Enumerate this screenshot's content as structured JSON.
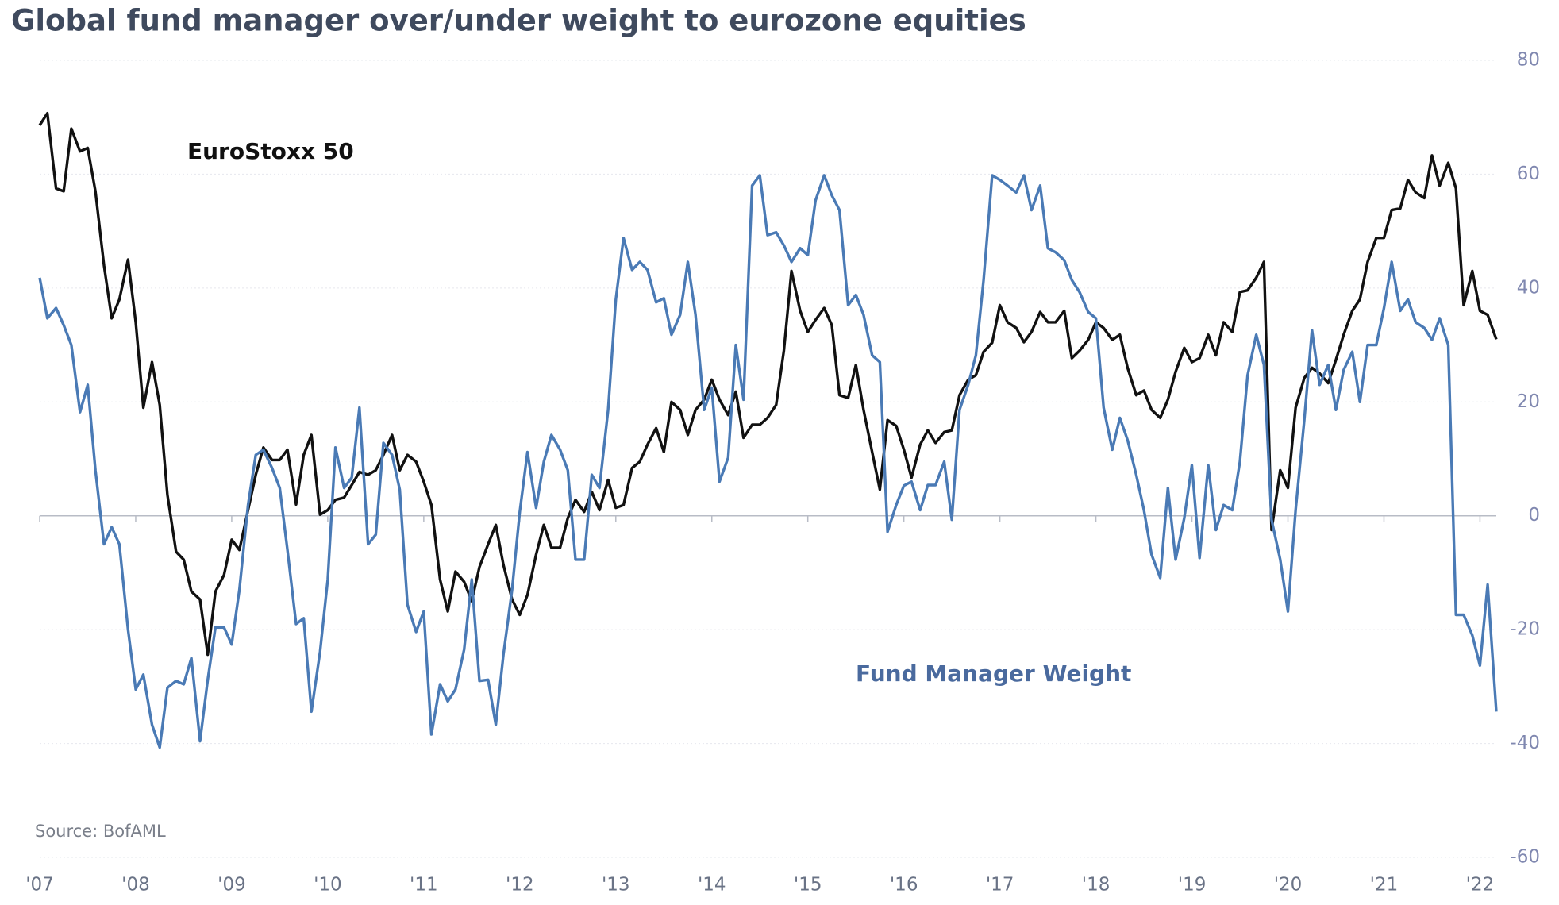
{
  "chart_data": {
    "type": "line",
    "title": "Global fund manager over/under weight to eurozone equities",
    "source": "Source: BofAML",
    "x": [
      2007.0,
      2007.08,
      2007.17,
      2007.25,
      2007.33,
      2007.42,
      2007.5,
      2007.58,
      2007.67,
      2007.75,
      2007.83,
      2007.92,
      2008.0,
      2008.08,
      2008.17,
      2008.25,
      2008.33,
      2008.42,
      2008.5,
      2008.58,
      2008.67,
      2008.75,
      2008.83,
      2008.92,
      2009.0,
      2009.08,
      2009.17,
      2009.25,
      2009.33,
      2009.42,
      2009.5,
      2009.58,
      2009.67,
      2009.75,
      2009.83,
      2009.92,
      2010.0,
      2010.08,
      2010.17,
      2010.25,
      2010.33,
      2010.42,
      2010.5,
      2010.58,
      2010.67,
      2010.75,
      2010.83,
      2010.92,
      2011.0,
      2011.08,
      2011.17,
      2011.25,
      2011.33,
      2011.42,
      2011.5,
      2011.58,
      2011.67,
      2011.75,
      2011.83,
      2011.92,
      2012.0,
      2012.08,
      2012.17,
      2012.25,
      2012.33,
      2012.42,
      2012.5,
      2012.58,
      2012.67,
      2012.75,
      2012.83,
      2012.92,
      2013.0,
      2013.08,
      2013.17,
      2013.25,
      2013.33,
      2013.42,
      2013.5,
      2013.58,
      2013.67,
      2013.75,
      2013.83,
      2013.92,
      2014.0,
      2014.08,
      2014.17,
      2014.25,
      2014.33,
      2014.42,
      2014.5,
      2014.58,
      2014.67,
      2014.75,
      2014.83,
      2014.92,
      2015.0,
      2015.08,
      2015.17,
      2015.25,
      2015.33,
      2015.42,
      2015.5,
      2015.58,
      2015.67,
      2015.75,
      2015.83,
      2015.92,
      2016.0,
      2016.08,
      2016.17,
      2016.25,
      2016.33,
      2016.42,
      2016.5,
      2016.58,
      2016.67,
      2016.75,
      2016.83,
      2016.92,
      2017.0,
      2017.08,
      2017.17,
      2017.25,
      2017.33,
      2017.42,
      2017.5,
      2017.58,
      2017.67,
      2017.75,
      2017.83,
      2017.92,
      2018.0,
      2018.08,
      2018.17,
      2018.25,
      2018.33,
      2018.42,
      2018.5,
      2018.58,
      2018.67,
      2018.75,
      2018.83,
      2018.92,
      2019.0,
      2019.08,
      2019.17,
      2019.25,
      2019.33,
      2019.42,
      2019.5,
      2019.58,
      2019.67,
      2019.75,
      2019.83,
      2019.92,
      2020.0,
      2020.08,
      2020.17,
      2020.25,
      2020.33,
      2020.42,
      2020.5,
      2020.58,
      2020.67,
      2020.75,
      2020.83,
      2020.92,
      2021.0,
      2021.08,
      2021.17,
      2021.25,
      2021.33,
      2021.42,
      2021.5,
      2021.58,
      2021.67,
      2021.75,
      2021.83,
      2021.92,
      2022.0,
      2022.08,
      2022.17
    ],
    "series": [
      {
        "name": "EuroStoxx 50",
        "color": "#111111",
        "values": [
          68.6,
          70.7,
          57.5,
          57,
          68,
          64,
          64.6,
          57,
          44,
          34.7,
          38,
          45,
          34,
          19,
          27,
          19.5,
          3.7,
          -6.3,
          -7.7,
          -13.3,
          -14.7,
          -24.4,
          -13.3,
          -10.4,
          -4.2,
          -6,
          1,
          7.2,
          12,
          9.8,
          9.8,
          11.6,
          2,
          10.7,
          14.2,
          0.2,
          1,
          2.8,
          3.2,
          5.4,
          7.7,
          7.2,
          8,
          10.7,
          14.2,
          8,
          10.7,
          9.5,
          6,
          1.9,
          -11.2,
          -16.8,
          -9.8,
          -11.6,
          -15,
          -9,
          -5,
          -1.6,
          -8.6,
          -14.7,
          -17.4,
          -13.9,
          -6.8,
          -1.6,
          -5.6,
          -5.6,
          -0.4,
          2.8,
          0.7,
          4.2,
          1,
          6.3,
          1.4,
          1.9,
          8.4,
          9.5,
          12.5,
          15.4,
          11.2,
          20,
          18.6,
          14.2,
          18.6,
          20.4,
          23.9,
          20.4,
          17.7,
          21.8,
          13.7,
          16,
          16,
          17.2,
          19.5,
          29,
          43,
          36,
          32.3,
          34.4,
          36.5,
          33.5,
          21.2,
          20.7,
          26.5,
          18.6,
          11.2,
          4.6,
          16.8,
          15.8,
          11.6,
          6.7,
          12.5,
          15,
          12.8,
          14.7,
          15,
          21.2,
          23.9,
          24.7,
          28.8,
          30.4,
          37,
          34,
          33,
          30.5,
          32.3,
          35.8,
          34,
          34,
          36,
          27.7,
          29,
          30.9,
          34,
          33,
          30.9,
          31.8,
          26,
          21.2,
          22,
          18.6,
          17.2,
          20.4,
          25.3,
          29.5,
          27,
          27.7,
          31.8,
          28.2,
          34,
          32.3,
          39.3,
          39.6,
          41.8,
          44.6,
          -2.5,
          8,
          4.9,
          19,
          24.2,
          26,
          25,
          23.3,
          27.4,
          31.8,
          36,
          38,
          44.6,
          48.8,
          48.8,
          53.7,
          54,
          59,
          56.8,
          55.8,
          63.3,
          58,
          62,
          57.5,
          37,
          43,
          36,
          35.3,
          31
        ]
      },
      {
        "name": "Fund Manager Weight",
        "color": "#4a7ab5",
        "values": [
          41.8,
          34.7,
          36.5,
          33.5,
          30,
          18.2,
          23,
          8,
          -5,
          -2,
          -5,
          -20,
          -30.5,
          -27.9,
          -36.7,
          -40.7,
          -30.2,
          -29,
          -29.6,
          -25,
          -39.6,
          -28.8,
          -19.6,
          -19.6,
          -22.6,
          -13,
          1.9,
          10.7,
          11.6,
          8.4,
          4.9,
          -6,
          -19,
          -18,
          -34.4,
          -23.9,
          -11.2,
          12,
          4.9,
          6.7,
          19,
          -5,
          -3.3,
          12.8,
          10.7,
          4.6,
          -15.6,
          -20.4,
          -16.8,
          -38.4,
          -29.6,
          -32.6,
          -30.5,
          -23.5,
          -11.2,
          -29,
          -28.8,
          -36.7,
          -24.4,
          -13,
          0.7,
          11.2,
          1.4,
          9.5,
          14.2,
          11.6,
          8,
          -7.7,
          -7.7,
          7.2,
          4.9,
          18.6,
          38,
          48.8,
          43.2,
          44.6,
          43.2,
          37.5,
          38.2,
          31.8,
          35.3,
          44.6,
          35.3,
          18.6,
          22.5,
          6,
          10.2,
          30,
          20.4,
          58,
          59.8,
          49.3,
          49.8,
          47.5,
          44.6,
          47,
          45.8,
          55.4,
          59.8,
          56.3,
          53.7,
          37,
          38.8,
          35.3,
          28.2,
          27,
          -2.8,
          1.9,
          5.3,
          6,
          1,
          5.4,
          5.4,
          9.5,
          -0.7,
          18.6,
          23,
          28.2,
          41.4,
          59.8,
          59,
          58,
          56.8,
          59.8,
          53.7,
          58,
          47,
          46.3,
          44.9,
          41.4,
          39.3,
          35.8,
          34.7,
          19,
          11.6,
          17.2,
          13.3,
          7.2,
          1,
          -6.8,
          -10.9,
          4.9,
          -7.7,
          -0.4,
          8.9,
          -7.4,
          8.9,
          -2.5,
          1.9,
          1,
          9.5,
          24.7,
          31.8,
          26.5,
          -0.7,
          -7.7,
          -16.8,
          1,
          16.8,
          32.6,
          23,
          26.5,
          18.6,
          25.6,
          28.8,
          20,
          30,
          30,
          36.5,
          44.6,
          36,
          38,
          34,
          33,
          30.9,
          34.7,
          30,
          -17.4,
          -17.4,
          -21,
          -26.3,
          -12.1,
          -34.4
        ]
      }
    ],
    "xlim": [
      2007,
      2022.17
    ],
    "xticks": [
      {
        "value": 2007,
        "label": "'07"
      },
      {
        "value": 2008,
        "label": "'08"
      },
      {
        "value": 2009,
        "label": "'09"
      },
      {
        "value": 2010,
        "label": "'10"
      },
      {
        "value": 2011,
        "label": "'11"
      },
      {
        "value": 2012,
        "label": "'12"
      },
      {
        "value": 2013,
        "label": "'13"
      },
      {
        "value": 2014,
        "label": "'14"
      },
      {
        "value": 2015,
        "label": "'15"
      },
      {
        "value": 2016,
        "label": "'16"
      },
      {
        "value": 2017,
        "label": "'17"
      },
      {
        "value": 2018,
        "label": "'18"
      },
      {
        "value": 2019,
        "label": "'19"
      },
      {
        "value": 2020,
        "label": "'20"
      },
      {
        "value": 2021,
        "label": "'21"
      },
      {
        "value": 2022,
        "label": "'22"
      }
    ],
    "ylim": [
      -60,
      80
    ],
    "yticks": [
      -60,
      -40,
      -20,
      0,
      20,
      40,
      60,
      80
    ],
    "grid": true
  }
}
